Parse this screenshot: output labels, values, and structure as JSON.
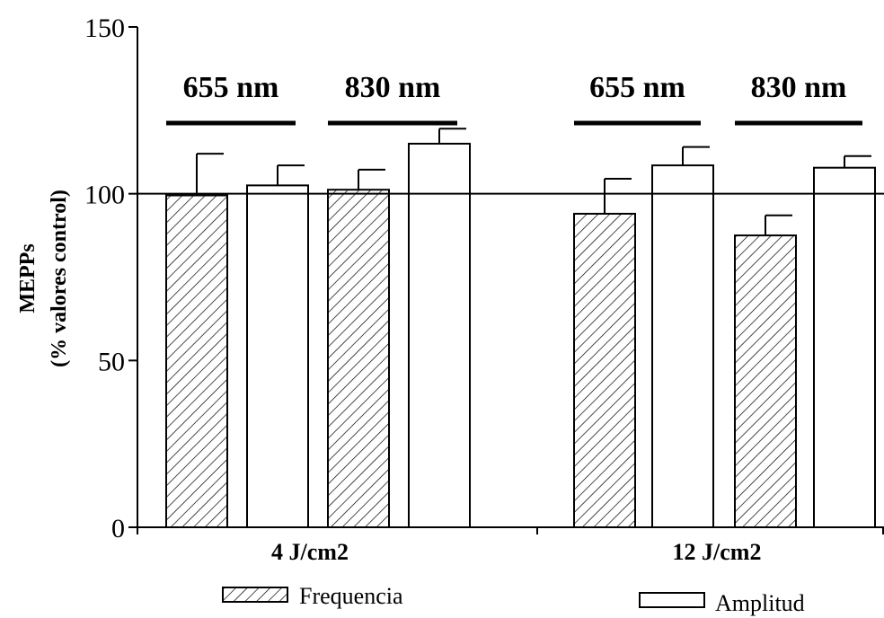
{
  "chart_data": {
    "type": "bar",
    "ylabel_line1": "MEPPs",
    "ylabel_line2": "(% valores control)",
    "ylim": [
      0,
      150
    ],
    "yticks": [
      0,
      50,
      100,
      150
    ],
    "reference_line": 100,
    "groups": [
      {
        "label": "4 J/cm2",
        "wavelengths": [
          {
            "label": "655 nm",
            "bars": [
              {
                "series": "Frequencia",
                "value": 99.5,
                "error": 12.5
              },
              {
                "series": "Amplitud",
                "value": 102.5,
                "error": 6
              }
            ]
          },
          {
            "label": "830 nm",
            "bars": [
              {
                "series": "Frequencia",
                "value": 101.2,
                "error": 6
              },
              {
                "series": "Amplitud",
                "value": 115,
                "error": 4.5
              }
            ]
          }
        ]
      },
      {
        "label": "12 J/cm2",
        "wavelengths": [
          {
            "label": "655 nm",
            "bars": [
              {
                "series": "Frequencia",
                "value": 94,
                "error": 10.5
              },
              {
                "series": "Amplitud",
                "value": 108.5,
                "error": 5.5
              }
            ]
          },
          {
            "label": "830 nm",
            "bars": [
              {
                "series": "Frequencia",
                "value": 87.5,
                "error": 6
              },
              {
                "series": "Amplitud",
                "value": 107.8,
                "error": 3.5
              }
            ]
          }
        ]
      }
    ],
    "legend": [
      {
        "name": "Frequencia",
        "pattern": "hatched"
      },
      {
        "name": "Amplitud",
        "pattern": "open"
      }
    ],
    "colors": {
      "stroke": "#000000",
      "fill": "#ffffff"
    }
  }
}
